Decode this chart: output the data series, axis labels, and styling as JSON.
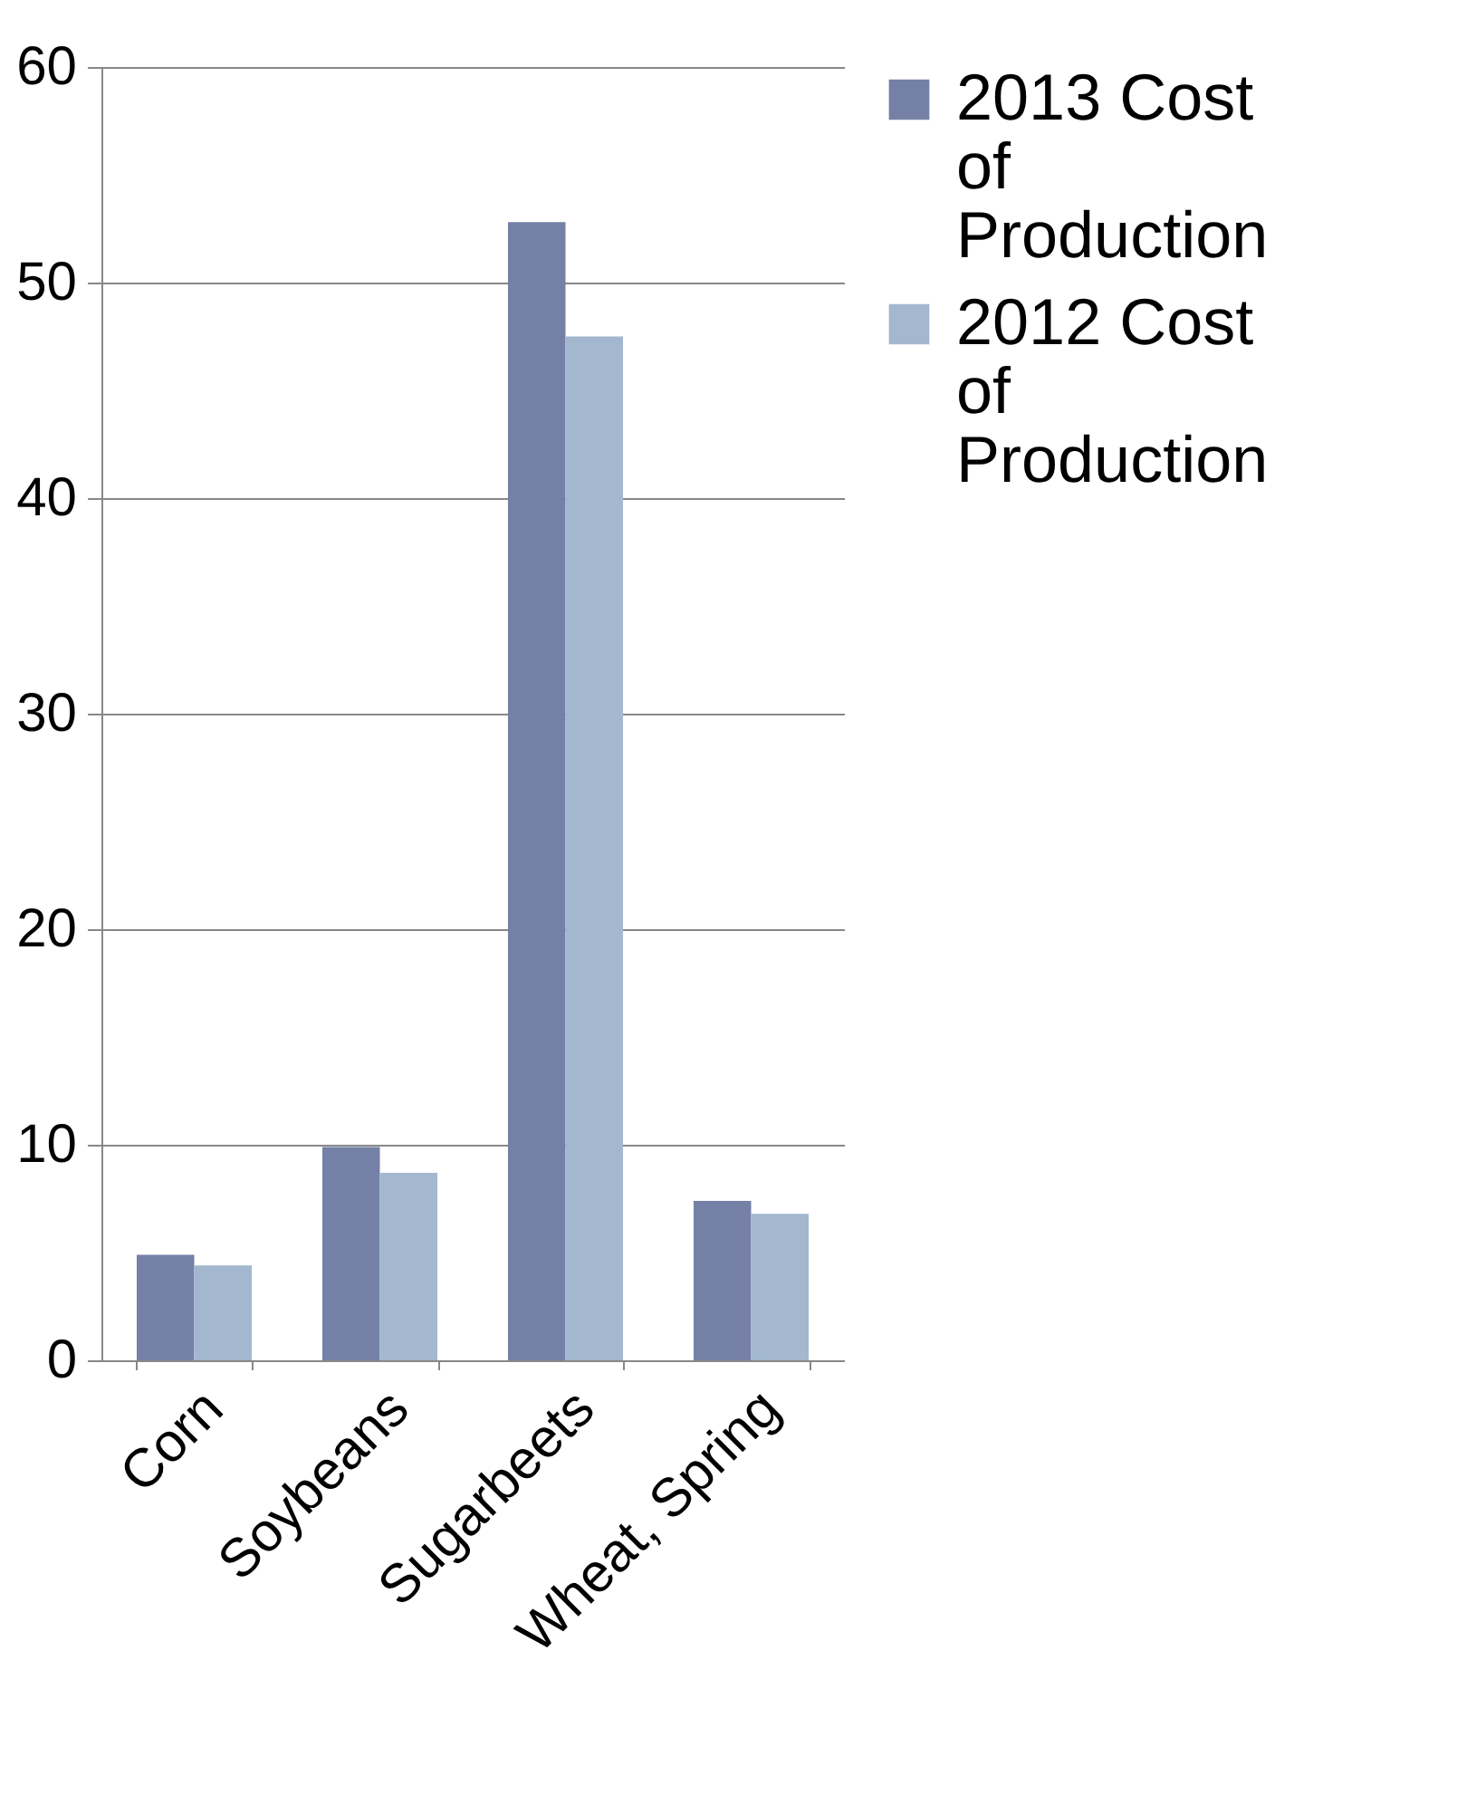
{
  "chart_data": {
    "type": "bar",
    "categories": [
      "Corn",
      "Soybeans",
      "Sugarbeets",
      "Wheat, Spring"
    ],
    "series": [
      {
        "name": "2013 Cost of Production",
        "color": "#7480a6",
        "values": [
          4.9,
          9.9,
          52.8,
          7.4
        ]
      },
      {
        "name": "2012 Cost of Production",
        "color": "#a3b8cf",
        "values": [
          4.4,
          8.7,
          47.5,
          6.8
        ]
      }
    ],
    "ylim": [
      0,
      60
    ],
    "yticks": [
      0,
      10,
      20,
      30,
      40,
      50,
      60
    ],
    "grid": "y",
    "legend": "right"
  }
}
